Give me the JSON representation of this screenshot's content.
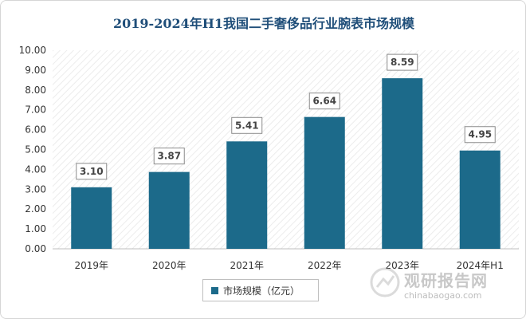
{
  "chart_data": {
    "type": "bar",
    "title": "2019-2024年H1我国二手奢侈品行业腕表市场规模",
    "categories": [
      "2019年",
      "2020年",
      "2021年",
      "2022年",
      "2023年",
      "2024年H1"
    ],
    "series": [
      {
        "name": "市场规模（亿元）",
        "values": [
          3.1,
          3.87,
          5.41,
          6.64,
          8.59,
          4.95
        ]
      }
    ],
    "data_labels": [
      "3.10",
      "3.87",
      "5.41",
      "6.64",
      "8.59",
      "4.95"
    ],
    "yticks": [
      "0.00",
      "1.00",
      "2.00",
      "3.00",
      "4.00",
      "5.00",
      "6.00",
      "7.00",
      "8.00",
      "9.00",
      "10.00"
    ],
    "ylim": [
      0,
      10
    ],
    "grid": false,
    "legend_position": "bottom",
    "colors": {
      "bar": "#1c6a8a",
      "label_border": "#8c8c8c",
      "plot_hatch": "#eeeeee"
    }
  },
  "watermark": {
    "cn": "观研报告网",
    "en": "chinabaogao.com",
    "icon": "watermark-logo-icon"
  }
}
